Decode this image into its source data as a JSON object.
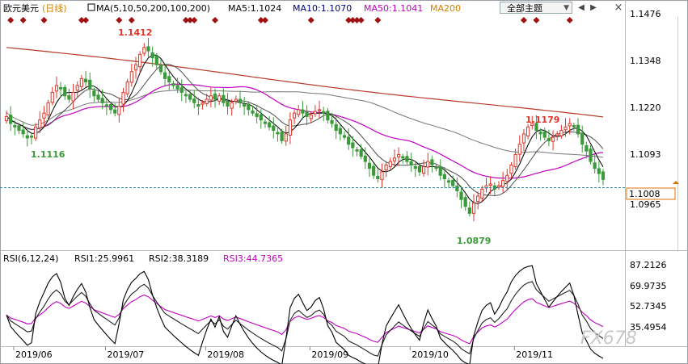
{
  "header": {
    "symbol": "欧元美元",
    "period": "(日线)",
    "ma_label": "MA(5,10,50,200,100,200)",
    "ma5": "MA5:1.1024",
    "ma10": "MA10:1.1070",
    "ma50": "MA50:1.1041",
    "ma200": "MA200"
  },
  "toolbar": {
    "theme_label": "全部主题",
    "prev": "◀",
    "next": "▶"
  },
  "rsi_header": {
    "label": "RSI(6,12,24)",
    "rsi1": "RSI1:25.9961",
    "rsi2": "RSI2:38.3189",
    "rsi3": "RSI3:44.7365"
  },
  "price_axis": [
    "1.1476",
    "1.1348",
    "1.1220",
    "1.1093",
    "1.0965"
  ],
  "current_price": "1.1008",
  "rsi_axis": [
    "87.2126",
    "69.9735",
    "52.7345",
    "35.4954"
  ],
  "x_axis": [
    "2019/06",
    "2019/07",
    "2019/08",
    "2019/09",
    "2019/10",
    "2019/11"
  ],
  "annotations": {
    "high1": "1.1412",
    "low1": "1.1116",
    "low2": "1.0879",
    "high2": "1.1179"
  },
  "watermark": "FX678",
  "colors": {
    "up": "#e0352b",
    "down": "#3a9a3a",
    "ma5": "#000000",
    "ma10": "#4d4d4d",
    "ma50": "#c000c0",
    "ma100": "#777777",
    "ma200": "#b83a2a",
    "event": "#a01010"
  },
  "chart_data": {
    "type": "candlestick",
    "title": "欧元美元 (日线)",
    "ylim": [
      1.085,
      1.149
    ],
    "start": 1.1178,
    "closes": [
      1.119,
      1.117,
      1.116,
      1.115,
      1.114,
      1.1128,
      1.113,
      1.116,
      1.118,
      1.12,
      1.123,
      1.126,
      1.128,
      1.127,
      1.125,
      1.124,
      1.126,
      1.128,
      1.13,
      1.129,
      1.127,
      1.125,
      1.124,
      1.123,
      1.122,
      1.121,
      1.12,
      1.122,
      1.126,
      1.129,
      1.132,
      1.134,
      1.137,
      1.139,
      1.138,
      1.136,
      1.134,
      1.132,
      1.13,
      1.129,
      1.128,
      1.127,
      1.126,
      1.125,
      1.124,
      1.123,
      1.122,
      1.123,
      1.124,
      1.125,
      1.124,
      1.125,
      1.123,
      1.122,
      1.123,
      1.124,
      1.123,
      1.122,
      1.121,
      1.12,
      1.119,
      1.118,
      1.117,
      1.116,
      1.115,
      1.114,
      1.112,
      1.114,
      1.118,
      1.12,
      1.121,
      1.12,
      1.119,
      1.1195,
      1.1205,
      1.121,
      1.12,
      1.118,
      1.117,
      1.115,
      1.114,
      1.113,
      1.111,
      1.11,
      1.109,
      1.1075,
      1.106,
      1.104,
      1.102,
      1.101,
      1.103,
      1.105,
      1.106,
      1.107,
      1.108,
      1.107,
      1.106,
      1.105,
      1.104,
      1.103,
      1.1045,
      1.106,
      1.105,
      1.104,
      1.102,
      1.101,
      1.1,
      1.099,
      1.0975,
      1.095,
      1.093,
      1.091,
      1.094,
      1.096,
      1.098,
      1.099,
      1.0995,
      1.098,
      1.099,
      1.1005,
      1.102,
      1.105,
      1.108,
      1.111,
      1.114,
      1.116,
      1.117,
      1.115,
      1.114,
      1.113,
      1.112,
      1.113,
      1.114,
      1.115,
      1.116,
      1.117,
      1.116,
      1.114,
      1.111,
      1.109,
      1.106,
      1.104,
      1.1025,
      1.1008
    ],
    "event_markers": [
      1,
      4,
      9,
      18,
      19,
      27,
      30,
      43,
      44,
      45,
      50,
      61,
      62,
      73,
      82,
      83,
      84,
      85,
      89,
      124,
      127,
      135
    ],
    "moving_averages": [
      {
        "name": "MA5",
        "period": 5,
        "value": 1.1024
      },
      {
        "name": "MA10",
        "period": 10,
        "value": 1.107
      },
      {
        "name": "MA50",
        "period": 50,
        "value": 1.1041
      },
      {
        "name": "MA100",
        "period": 100
      },
      {
        "name": "MA200",
        "period": 200,
        "start": 1.139,
        "end": 1.1185
      }
    ],
    "rsi": {
      "periods": [
        6,
        12,
        24
      ],
      "rsi1": 25.9961,
      "rsi2": 38.3189,
      "rsi3": 44.7365,
      "ylim": [
        25,
        95
      ]
    },
    "x_ticks": [
      "2019/06",
      "2019/07",
      "2019/08",
      "2019/09",
      "2019/10",
      "2019/11"
    ],
    "x_tick_index": [
      6,
      28,
      52,
      77,
      101,
      126
    ]
  }
}
